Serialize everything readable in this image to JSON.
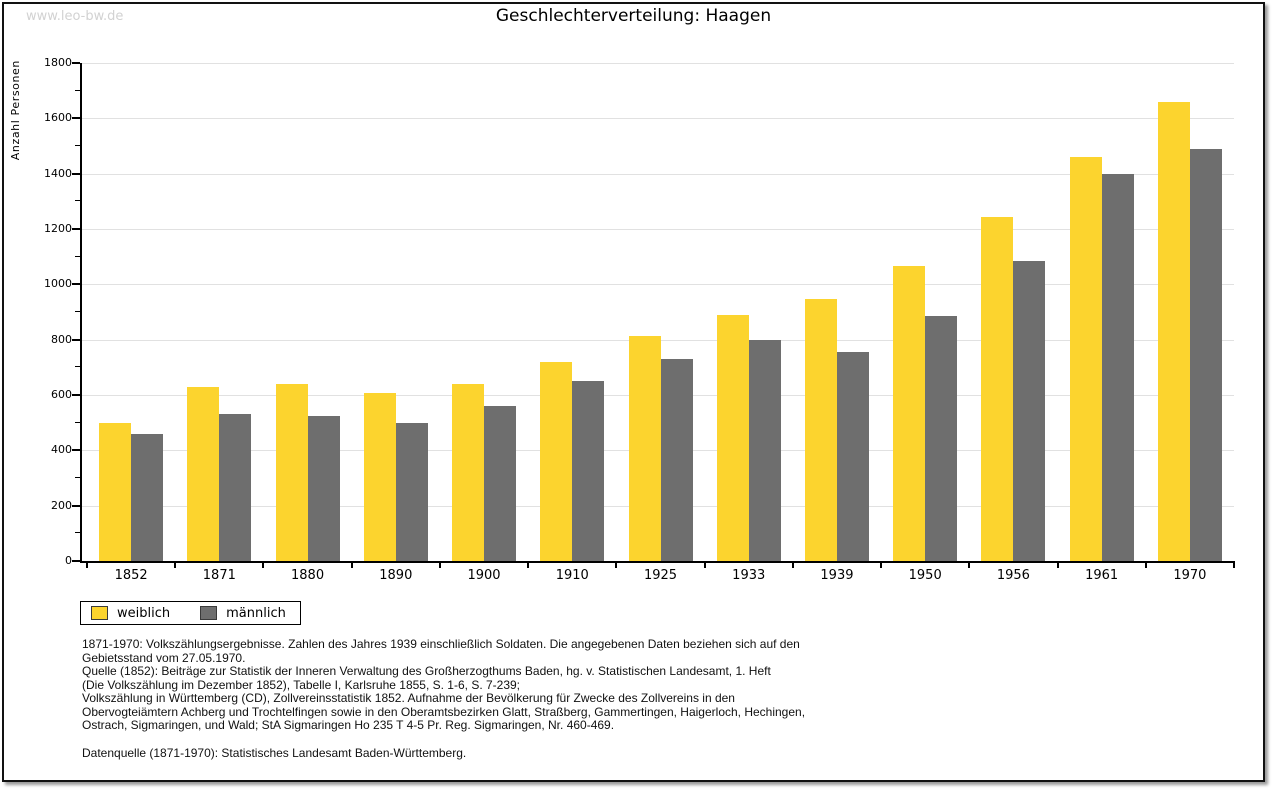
{
  "page": {
    "watermark": "www.leo-bw.de"
  },
  "chart_data": {
    "type": "bar",
    "title": "Geschlechterverteilung: Haagen",
    "xlabel": "",
    "ylabel": "Anzahl Personen",
    "ylim": [
      0,
      1800
    ],
    "ytick_interval": 200,
    "minor_tick_interval": 100,
    "grid": true,
    "legend_position": "bottom-left",
    "categories": [
      "1852",
      "1871",
      "1880",
      "1890",
      "1900",
      "1910",
      "1925",
      "1933",
      "1939",
      "1950",
      "1956",
      "1961",
      "1970"
    ],
    "series": [
      {
        "name": "weiblich",
        "color": "#fcd42e",
        "values": [
          500,
          630,
          640,
          608,
          640,
          720,
          812,
          890,
          948,
          1065,
          1245,
          1460,
          1660
        ]
      },
      {
        "name": "männlich",
        "color": "#6e6e6e",
        "values": [
          460,
          530,
          525,
          500,
          560,
          650,
          730,
          800,
          755,
          885,
          1085,
          1400,
          1490
        ]
      }
    ]
  },
  "footnotes": {
    "lines": [
      "1871-1970: Volkszählungsergebnisse. Zahlen des Jahres 1939 einschließlich Soldaten. Die angegebenen Daten beziehen sich auf den",
      "Gebietsstand vom 27.05.1970.",
      "Quelle (1852): Beiträge zur Statistik der Inneren Verwaltung des Großherzogthums Baden, hg. v. Statistischen Landesamt, 1. Heft",
      "(Die Volkszählung im Dezember 1852), Tabelle I, Karlsruhe 1855, S. 1-6, S. 7-239;",
      "Volkszählung in Württemberg (CD), Zollvereinsstatistik 1852. Aufnahme der Bevölkerung für Zwecke des Zollvereins in den",
      "Obervogteiämtern Achberg und Trochtelfingen sowie in den Oberamtsbezirken Glatt, Straßberg, Gammertingen, Haigerloch, Hechingen,",
      "Ostrach, Sigmaringen, und Wald; StA Sigmaringen Ho 235 T 4-5 Pr. Reg. Sigmaringen, Nr. 460-469."
    ],
    "datasource": "Datenquelle (1871-1970): Statistisches Landesamt Baden-Württemberg."
  },
  "colors": {
    "axis": "#000000",
    "gridline": "#e1e1e1",
    "weiblich": "#fcd42e",
    "maennlich": "#6e6e6e",
    "watermark": "#d2d2d2",
    "frame_border": "#111111",
    "frame_shadow": "#9a9a9a"
  }
}
